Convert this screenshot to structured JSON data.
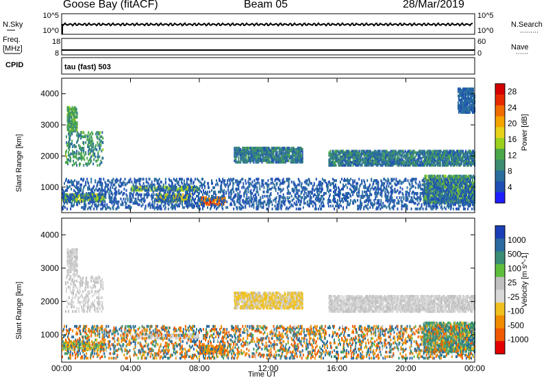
{
  "header": {
    "station": "Goose Bay (fitACF)",
    "beam": "Beam 05",
    "date": "28/Mar/2019"
  },
  "params": {
    "nsky_label": "N.Sky",
    "nsky_ticks": [
      "10^5",
      "10^0"
    ],
    "nsearch_label": "N.Search",
    "nsearch_ticks": [
      "10^5",
      "10^0"
    ],
    "freq_label": "Freq.",
    "freq_unit": "[MHz]",
    "freq_ticks": [
      "18",
      "8"
    ],
    "nave_label": "Nave",
    "nave_ticks": [
      "60",
      "0"
    ],
    "cpid_label": "CPID",
    "cpid_value": "tau (fast) 503"
  },
  "colors": {
    "power": [
      "#1e1eff",
      "#1f4fb4",
      "#2a6e9e",
      "#3c8c72",
      "#4aa84a",
      "#9bd01f",
      "#e8d21b",
      "#f5a300",
      "#f06b00",
      "#e62a00",
      "#d40000"
    ],
    "velocity": [
      "#1a3fb6",
      "#2a6aa0",
      "#3b8d76",
      "#5fbf3c",
      "#c0c0c0",
      "#d8d8d8",
      "#f0c020",
      "#f08c00",
      "#ef5a00",
      "#e40000"
    ]
  },
  "chart_data": [
    {
      "type": "heatmap",
      "name": "power",
      "ylabel": "Slant Range [km]",
      "yticks": [
        1000,
        2000,
        3000,
        4000
      ],
      "ylim": [
        180,
        4500
      ],
      "x_ticks": [
        "00:00",
        "04:00",
        "08:00",
        "12:00",
        "16:00",
        "20:00",
        "00:00"
      ],
      "x_range_hours": [
        0,
        24
      ],
      "colorbar": {
        "label": "Power [dB]",
        "ticks": [
          "4",
          "8",
          "12",
          "16",
          "20",
          "24",
          "28"
        ],
        "range": [
          0,
          30
        ]
      },
      "echo_bands": [
        {
          "t": [
            0.0,
            2.5
          ],
          "range_km": [
            550,
            800
          ],
          "value_db": [
            10,
            18
          ]
        },
        {
          "t": [
            0.2,
            2.4
          ],
          "range_km": [
            1700,
            2800
          ],
          "value_db": [
            6,
            14
          ]
        },
        {
          "t": [
            0.3,
            0.9
          ],
          "range_km": [
            2800,
            3600
          ],
          "value_db": [
            8,
            14
          ]
        },
        {
          "t": [
            4.0,
            8.0
          ],
          "range_km": [
            900,
            1050
          ],
          "value_db": [
            10,
            18
          ]
        },
        {
          "t": [
            5.5,
            7.5
          ],
          "range_km": [
            550,
            800
          ],
          "value_db": [
            12,
            22
          ]
        },
        {
          "t": [
            8.0,
            9.5
          ],
          "range_km": [
            450,
            700
          ],
          "value_db": [
            18,
            28
          ]
        },
        {
          "t": [
            10.0,
            14.0
          ],
          "range_km": [
            1800,
            2300
          ],
          "value_db": [
            4,
            12
          ]
        },
        {
          "t": [
            15.5,
            24.0
          ],
          "range_km": [
            1700,
            2200
          ],
          "value_db": [
            4,
            12
          ]
        },
        {
          "t": [
            21.0,
            24.0
          ],
          "range_km": [
            500,
            1400
          ],
          "value_db": [
            6,
            16
          ]
        },
        {
          "t": [
            23.0,
            24.0
          ],
          "range_km": [
            3400,
            4200
          ],
          "value_db": [
            4,
            8
          ]
        },
        {
          "t": [
            0.0,
            24.0
          ],
          "range_km": [
            300,
            1300
          ],
          "value_db": [
            3,
            8
          ]
        }
      ]
    },
    {
      "type": "heatmap",
      "name": "velocity",
      "ylabel": "Slant Range [km]",
      "yticks": [
        1000,
        2000,
        3000,
        4000
      ],
      "ylim": [
        180,
        4500
      ],
      "x_ticks": [
        "00:00",
        "04:00",
        "08:00",
        "12:00",
        "16:00",
        "20:00",
        "00:00"
      ],
      "xlabel": "Time UT",
      "colorbar": {
        "label": "Velocity [m s^-1]",
        "ticks": [
          "1000",
          "500",
          "100",
          "25",
          "-25",
          "-100",
          "-500",
          "-1000"
        ]
      },
      "echo_bands": [
        {
          "t": [
            0.0,
            2.5
          ],
          "range_km": [
            550,
            800
          ],
          "value_ms": [
            -100,
            100
          ]
        },
        {
          "t": [
            0.2,
            2.4
          ],
          "range_km": [
            1700,
            2800
          ],
          "value_ms": [
            -25,
            25
          ]
        },
        {
          "t": [
            0.3,
            0.9
          ],
          "range_km": [
            2800,
            3600
          ],
          "value_ms": [
            -25,
            25
          ]
        },
        {
          "t": [
            4.0,
            8.0
          ],
          "range_km": [
            900,
            1050
          ],
          "value_ms": [
            -25,
            25
          ]
        },
        {
          "t": [
            8.0,
            9.5
          ],
          "range_km": [
            450,
            700
          ],
          "value_ms": [
            -500,
            -100
          ]
        },
        {
          "t": [
            10.0,
            14.0
          ],
          "range_km": [
            1800,
            2300
          ],
          "value_ms": [
            -100,
            25
          ]
        },
        {
          "t": [
            15.5,
            24.0
          ],
          "range_km": [
            1700,
            2200
          ],
          "value_ms": [
            -25,
            25
          ]
        },
        {
          "t": [
            21.0,
            24.0
          ],
          "range_km": [
            500,
            1400
          ],
          "value_ms": [
            -100,
            500
          ]
        },
        {
          "t": [
            0.0,
            24.0
          ],
          "range_km": [
            300,
            1300
          ],
          "value_ms": [
            -1000,
            1000
          ]
        }
      ]
    }
  ]
}
